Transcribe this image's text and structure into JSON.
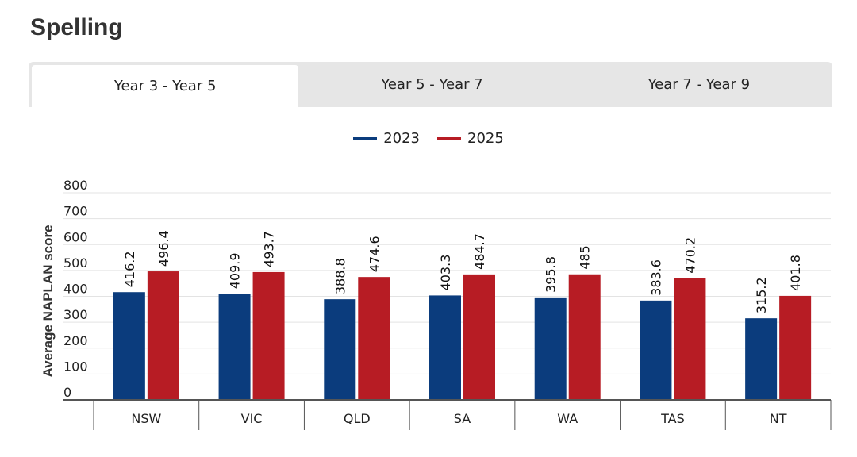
{
  "page": {
    "title": "Spelling"
  },
  "tabs": [
    {
      "label": "Year 3 - Year 5",
      "active": true
    },
    {
      "label": "Year 5 - Year 7",
      "active": false
    },
    {
      "label": "Year 7 - Year 9",
      "active": false
    }
  ],
  "colors": {
    "s2023": "#0b3c7d",
    "s2025": "#b71c24"
  },
  "chart_data": {
    "type": "bar",
    "ylabel": "Average NAPLAN score",
    "ylim": [
      0,
      800
    ],
    "yticks": [
      0,
      100,
      200,
      300,
      400,
      500,
      600,
      700,
      800
    ],
    "categories": [
      "NSW",
      "VIC",
      "QLD",
      "SA",
      "WA",
      "TAS",
      "NT"
    ],
    "series": [
      {
        "name": "2023",
        "values": [
          416.2,
          409.9,
          388.8,
          403.3,
          395.8,
          383.6,
          315.2
        ]
      },
      {
        "name": "2025",
        "values": [
          496.4,
          493.7,
          474.6,
          484.7,
          485,
          470.2,
          401.8
        ]
      }
    ],
    "legend": "top-center",
    "grid": true
  }
}
